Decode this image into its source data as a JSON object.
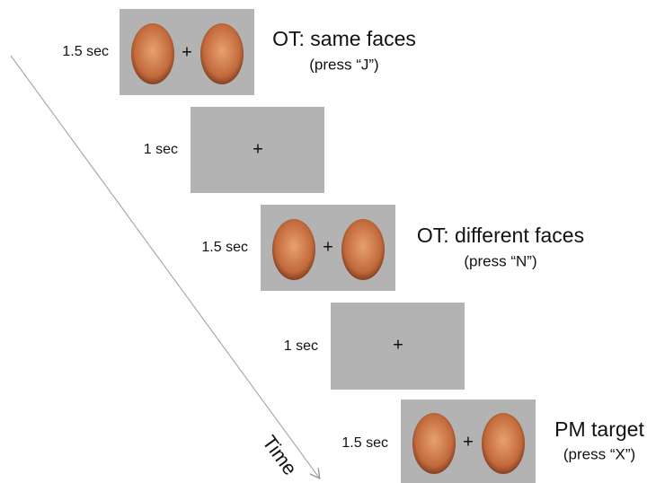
{
  "frames": [
    {
      "duration": "1.5 sec",
      "fixation": "+",
      "label": "OT: same faces",
      "response": "(press “J”)"
    },
    {
      "duration": "1 sec",
      "fixation": "+"
    },
    {
      "duration": "1.5 sec",
      "fixation": "+",
      "label": "OT: different faces",
      "response": "(press “N”)"
    },
    {
      "duration": "1 sec",
      "fixation": "+"
    },
    {
      "duration": "1.5 sec",
      "fixation": "+",
      "label": "PM target",
      "response": "(press “X”)"
    }
  ],
  "axis_label": "Time"
}
